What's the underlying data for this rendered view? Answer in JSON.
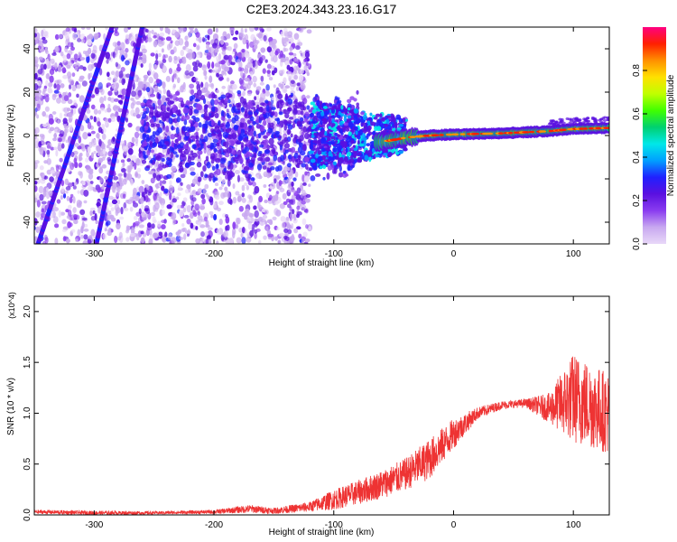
{
  "title": "C2E3.2024.343.23.16.G17",
  "chart_data": [
    {
      "type": "heatmap",
      "xlabel": "Height of straight line (km)",
      "ylabel": "Frequency (Hz)",
      "xlim": [
        -350,
        130
      ],
      "ylim": [
        -50,
        50
      ],
      "xticks": [
        -300,
        -200,
        -100,
        0,
        100
      ],
      "xtick_labels": [
        "-300",
        "-200",
        "-100",
        "0",
        "100"
      ],
      "yticks": [
        -40,
        -20,
        0,
        20,
        40
      ],
      "ytick_labels": [
        "-40",
        "-20",
        "0",
        "20",
        "40"
      ],
      "colorbar": {
        "label": "Normalized spectral amplitude",
        "range": [
          0,
          1
        ],
        "ticks": [
          0.0,
          0.2,
          0.4,
          0.6,
          0.8
        ],
        "tick_labels": [
          "0.0",
          "0.2",
          "0.4",
          "0.6",
          "0.8"
        ],
        "colors": [
          "#e8d8f8",
          "#c8a8f0",
          "#8a3cf0",
          "#5a10e0",
          "#2020ff",
          "#00a0ff",
          "#00e8e8",
          "#00d070",
          "#40ff00",
          "#c0ff00",
          "#ffe000",
          "#ff9000",
          "#ff2000",
          "#ff0080"
        ]
      },
      "features": {
        "carrier_line": [
          [
            -60,
            -3
          ],
          [
            -40,
            -1
          ],
          [
            -20,
            0
          ],
          [
            0,
            0.5
          ],
          [
            40,
            1
          ],
          [
            80,
            2
          ],
          [
            100,
            3
          ],
          [
            130,
            3.5
          ]
        ],
        "diagonal_lines": [
          {
            "x": [
              -350,
              -282
            ],
            "y": [
              -55,
              55
            ]
          },
          {
            "x": [
              -300,
              -258
            ],
            "y": [
              -55,
              55
            ]
          }
        ],
        "noise_region_x": [
          -350,
          -120
        ],
        "turbulent_region_x": [
          -120,
          -40
        ]
      },
      "grid": false
    },
    {
      "type": "line",
      "xlabel": "Height of straight line (km)",
      "ylabel": "SNR (10 * v/v)",
      "y_multiplier": "(x10^4)",
      "xlim": [
        -350,
        130
      ],
      "ylim": [
        0,
        2.15
      ],
      "xticks": [
        -300,
        -200,
        -100,
        0,
        100
      ],
      "xtick_labels": [
        "-300",
        "-200",
        "-100",
        "0",
        "100"
      ],
      "yticks": [
        0.0,
        0.5,
        1.0,
        1.5,
        2.0
      ],
      "ytick_labels": [
        "0.0",
        "0.5",
        "1.0",
        "1.5",
        "2.0"
      ],
      "series": [
        {
          "color": "#ee3333",
          "x": [
            -350,
            -300,
            -250,
            -200,
            -170,
            -150,
            -120,
            -100,
            -80,
            -60,
            -40,
            -20,
            0,
            20,
            40,
            60,
            80,
            100,
            130
          ],
          "y": [
            0.03,
            0.02,
            0.02,
            0.03,
            0.06,
            0.04,
            0.08,
            0.15,
            0.22,
            0.3,
            0.4,
            0.55,
            0.8,
            1.0,
            1.08,
            1.1,
            1.05,
            1.15,
            1.0
          ],
          "noise": [
            0.02,
            0.02,
            0.015,
            0.02,
            0.04,
            0.03,
            0.05,
            0.1,
            0.12,
            0.14,
            0.16,
            0.2,
            0.15,
            0.06,
            0.04,
            0.04,
            0.15,
            0.45,
            0.4
          ]
        }
      ],
      "grid": false
    }
  ]
}
